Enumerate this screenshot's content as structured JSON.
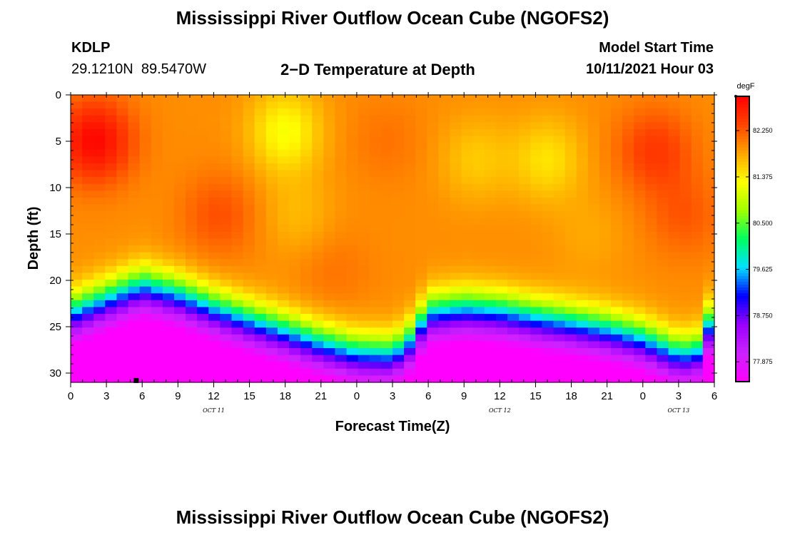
{
  "header": {
    "title_top": "Mississippi River Outflow Ocean Cube (NGOFS2)",
    "title_bottom": "Mississippi River Outflow Ocean Cube (NGOFS2)",
    "station_id": "KDLP",
    "station_coords": "29.1210N  89.5470W",
    "plot_subtitle": "2−D Temperature at Depth",
    "model_start_label": "Model Start Time",
    "model_start_value": "10/11/2021 Hour 03"
  },
  "chart_data": {
    "type": "heatmap",
    "title": "2−D Temperature at Depth",
    "xlabel": "Forecast Time(Z)",
    "ylabel": "Depth (ft)",
    "units": "degF",
    "x_hours_range": [
      0,
      54
    ],
    "x_tick_labels": [
      "0",
      "3",
      "6",
      "9",
      "12",
      "15",
      "18",
      "21",
      "0",
      "3",
      "6",
      "9",
      "12",
      "15",
      "18",
      "21",
      "0",
      "3",
      "6"
    ],
    "date_labels": [
      {
        "text": "OCT 11",
        "at_hour": 12
      },
      {
        "text": "OCT 12",
        "at_hour": 36
      },
      {
        "text": "OCT 13",
        "at_hour": 51
      }
    ],
    "y_range": [
      0,
      31
    ],
    "y_ticks": [
      0,
      5,
      10,
      15,
      20,
      25,
      30
    ],
    "colorbar": {
      "label": "degF",
      "min": 77.5,
      "max": 82.9,
      "tick_labels": [
        "82.250",
        "81.375",
        "80.500",
        "79.625",
        "78.750",
        "77.875"
      ],
      "tick_values": [
        82.25,
        81.375,
        80.5,
        79.625,
        78.75,
        77.875
      ],
      "colors": [
        "#ff00ff",
        "#cc22ff",
        "#9900ff",
        "#0000ff",
        "#00e0ff",
        "#00ff60",
        "#a0ff00",
        "#ffff00",
        "#ffa500",
        "#ff4400",
        "#ff0000"
      ]
    },
    "thermocline_depth_ft": [
      [
        0,
        22.5
      ],
      [
        3,
        21.0
      ],
      [
        6,
        19.5
      ],
      [
        9,
        20.5
      ],
      [
        12,
        22.0
      ],
      [
        15,
        23.3
      ],
      [
        18,
        24.5
      ],
      [
        21,
        25.8
      ],
      [
        24,
        26.8
      ],
      [
        27,
        27.0
      ],
      [
        28.5,
        25.5
      ],
      [
        30,
        22.5
      ],
      [
        33,
        22.0
      ],
      [
        36,
        22.3
      ],
      [
        39,
        23.0
      ],
      [
        42,
        23.6
      ],
      [
        45,
        24.3
      ],
      [
        48,
        25.3
      ],
      [
        51,
        27.0
      ],
      [
        52.5,
        26.8
      ],
      [
        54,
        22.5
      ]
    ],
    "surface_warm_cores": [
      {
        "hour": 2.0,
        "depth_ft": 5.0,
        "value": 82.85
      },
      {
        "hour": 12.5,
        "depth_ft": 13.0,
        "value": 82.3
      },
      {
        "hour": 26.5,
        "depth_ft": 5.0,
        "value": 82.1
      },
      {
        "hour": 49.0,
        "depth_ft": 6.0,
        "value": 82.45
      },
      {
        "hour": 51.5,
        "depth_ft": 13.0,
        "value": 82.25
      },
      {
        "hour": 22.0,
        "depth_ft": 19.0,
        "value": 82.1
      }
    ],
    "surface_cool_cores": [
      {
        "hour": 18.0,
        "depth_ft": 4.0,
        "value": 81.25
      },
      {
        "hour": 40.0,
        "depth_ft": 7.0,
        "value": 81.45
      },
      {
        "hour": 34.0,
        "depth_ft": 7.0,
        "value": 81.6
      },
      {
        "hour": 43.5,
        "depth_ft": 15.0,
        "value": 81.8
      },
      {
        "hour": 19.0,
        "depth_ft": 13.0,
        "value": 81.7
      }
    ],
    "marker": {
      "hour": 5.5,
      "depth_ft": 30.8
    }
  }
}
